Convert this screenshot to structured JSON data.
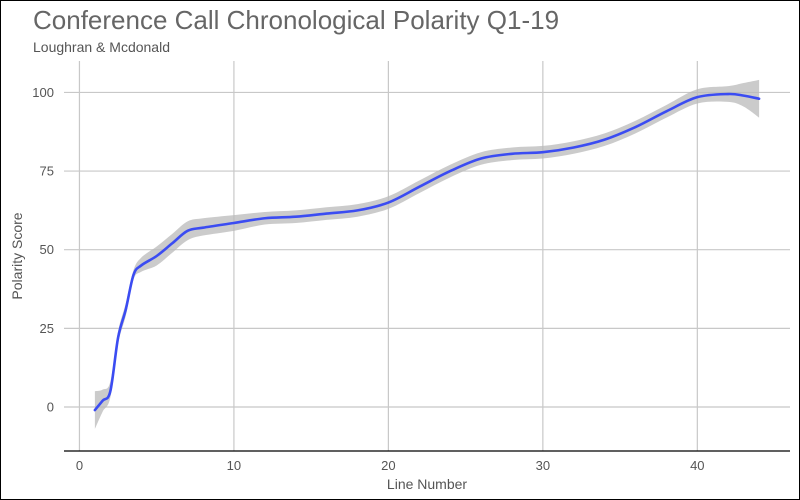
{
  "chart_data": {
    "type": "line",
    "title": "Conference Call Chronological Polarity Q1-19",
    "subtitle": "Loughran & Mcdonald",
    "xlabel": "Line Number",
    "ylabel": "Polarity Score",
    "xlim": [
      -1,
      46
    ],
    "ylim": [
      -14,
      110
    ],
    "x_ticks": [
      0,
      10,
      20,
      30,
      40
    ],
    "y_ticks": [
      0,
      25,
      50,
      75,
      100
    ],
    "grid": true,
    "series": [
      {
        "color": "#3b4cf2",
        "band_color": "#b9b9b9",
        "points": [
          {
            "x": 1,
            "y": -1,
            "lo": -7,
            "hi": 5
          },
          {
            "x": 1.5,
            "y": 2,
            "lo": -1.5,
            "hi": 5.5
          },
          {
            "x": 2,
            "y": 5,
            "lo": 3,
            "hi": 8
          },
          {
            "x": 2.5,
            "y": 22,
            "lo": 20,
            "hi": 24
          },
          {
            "x": 3,
            "y": 31,
            "lo": 29,
            "hi": 33
          },
          {
            "x": 3.5,
            "y": 42,
            "lo": 40.5,
            "hi": 43.5
          },
          {
            "x": 4,
            "y": 45,
            "lo": 43,
            "hi": 47.5
          },
          {
            "x": 5,
            "y": 48,
            "lo": 45,
            "hi": 51
          },
          {
            "x": 6,
            "y": 52,
            "lo": 49,
            "hi": 55
          },
          {
            "x": 7,
            "y": 56,
            "lo": 53,
            "hi": 59
          },
          {
            "x": 8,
            "y": 57,
            "lo": 54.5,
            "hi": 60
          },
          {
            "x": 10,
            "y": 58.5,
            "lo": 56,
            "hi": 61
          },
          {
            "x": 12,
            "y": 60,
            "lo": 58,
            "hi": 62
          },
          {
            "x": 14,
            "y": 60.5,
            "lo": 58.5,
            "hi": 62.5
          },
          {
            "x": 16,
            "y": 61.5,
            "lo": 59.5,
            "hi": 63.5
          },
          {
            "x": 18,
            "y": 62.5,
            "lo": 60.5,
            "hi": 64.5
          },
          {
            "x": 20,
            "y": 65,
            "lo": 63,
            "hi": 67
          },
          {
            "x": 22,
            "y": 70,
            "lo": 68,
            "hi": 72
          },
          {
            "x": 24,
            "y": 75,
            "lo": 73,
            "hi": 77
          },
          {
            "x": 26,
            "y": 79,
            "lo": 77,
            "hi": 81
          },
          {
            "x": 28,
            "y": 80.5,
            "lo": 78.5,
            "hi": 82.5
          },
          {
            "x": 30,
            "y": 81,
            "lo": 79,
            "hi": 83
          },
          {
            "x": 32,
            "y": 82.5,
            "lo": 80.5,
            "hi": 84.5
          },
          {
            "x": 34,
            "y": 85,
            "lo": 83,
            "hi": 87
          },
          {
            "x": 36,
            "y": 89,
            "lo": 87,
            "hi": 91
          },
          {
            "x": 38,
            "y": 94,
            "lo": 92,
            "hi": 96
          },
          {
            "x": 40,
            "y": 98.5,
            "lo": 96.5,
            "hi": 101
          },
          {
            "x": 42,
            "y": 99.5,
            "lo": 97,
            "hi": 102
          },
          {
            "x": 43,
            "y": 99,
            "lo": 95.5,
            "hi": 103
          },
          {
            "x": 44,
            "y": 98,
            "lo": 92,
            "hi": 104
          }
        ]
      }
    ]
  }
}
